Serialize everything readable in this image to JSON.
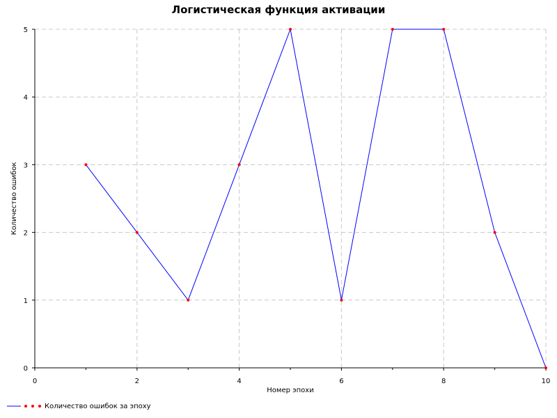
{
  "chart_data": {
    "type": "line",
    "title": "Логистическая функция активации",
    "xlabel": "Номер эпохи",
    "ylabel": "Количество ошибок",
    "xlim": [
      0,
      10
    ],
    "ylim": [
      0,
      5
    ],
    "xticks": [
      "0",
      "2",
      "4",
      "6",
      "8",
      "10"
    ],
    "yticks": [
      "0",
      "1",
      "2",
      "3",
      "4",
      "5"
    ],
    "grid": true,
    "legend_position": "bottom-left",
    "series": [
      {
        "name": "Количество ошибок за эпоху",
        "x": [
          1,
          2,
          3,
          4,
          5,
          6,
          7,
          8,
          9,
          10
        ],
        "y": [
          3,
          2,
          1,
          3,
          5,
          1,
          5,
          5,
          2,
          0
        ],
        "line_color": "#0000ff",
        "marker_color": "#ff0000"
      }
    ]
  }
}
